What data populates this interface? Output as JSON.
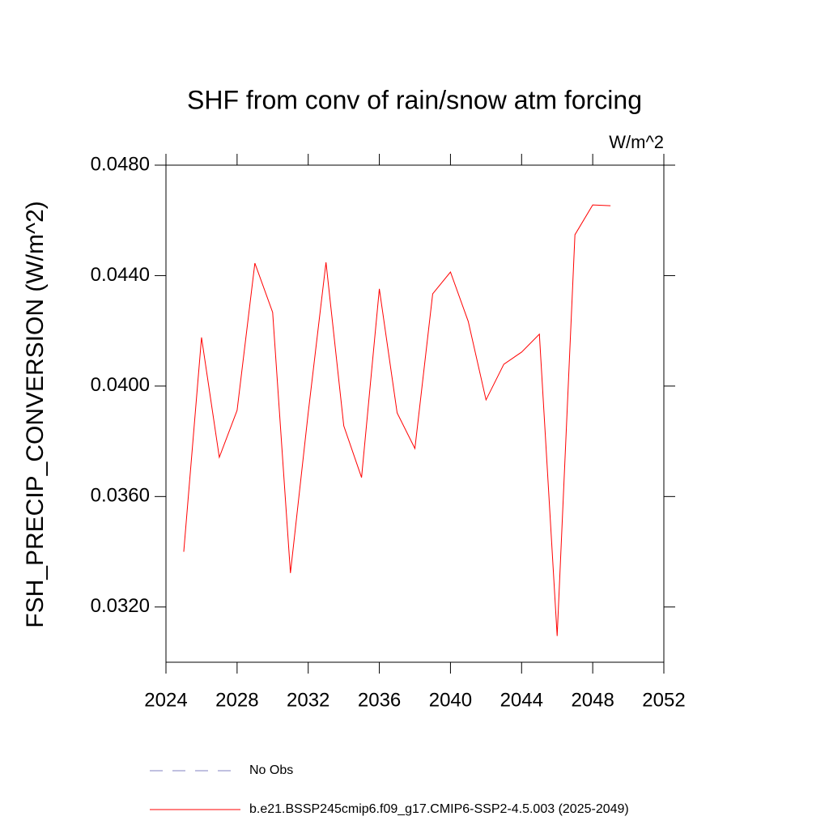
{
  "chart_data": {
    "type": "line",
    "title": "SHF from conv of rain/snow atm forcing",
    "units_label": "W/m^2",
    "y_label": "FSH_PRECIP_CONVERSION  (W/m^2)",
    "x": [
      2025,
      2026,
      2027,
      2028,
      2029,
      2030,
      2031,
      2032,
      2033,
      2034,
      2035,
      2036,
      2037,
      2038,
      2039,
      2040,
      2041,
      2042,
      2043,
      2044,
      2045,
      2046,
      2047,
      2048,
      2049
    ],
    "series": [
      {
        "name": "b.e21.BSSP245cmip6.f09_g17.CMIP6-SSP2-4.5.003 (2025-2049)",
        "color": "#ff0000",
        "values": [
          0.034,
          0.04176,
          0.03742,
          0.03912,
          0.04445,
          0.04267,
          0.03323,
          0.03903,
          0.04448,
          0.03856,
          0.03669,
          0.04352,
          0.03903,
          0.03774,
          0.04334,
          0.04413,
          0.04234,
          0.0395,
          0.04079,
          0.04123,
          0.04188,
          0.03095,
          0.04548,
          0.04656,
          0.04653
        ]
      }
    ],
    "legend_extra": [
      {
        "name": "No Obs",
        "color": "#8080c0",
        "dash": true
      }
    ],
    "xlim": [
      2024,
      2052
    ],
    "xticks": [
      2024,
      2028,
      2032,
      2036,
      2040,
      2044,
      2048,
      2052
    ],
    "ylim": [
      0.03,
      0.048
    ],
    "yticks": [
      {
        "value": 0.032,
        "label": "0.0320"
      },
      {
        "value": 0.036,
        "label": "0.0360"
      },
      {
        "value": 0.04,
        "label": "0.0400"
      },
      {
        "value": 0.044,
        "label": "0.0440"
      },
      {
        "value": 0.048,
        "label": "0.0480"
      }
    ],
    "grid": false
  }
}
